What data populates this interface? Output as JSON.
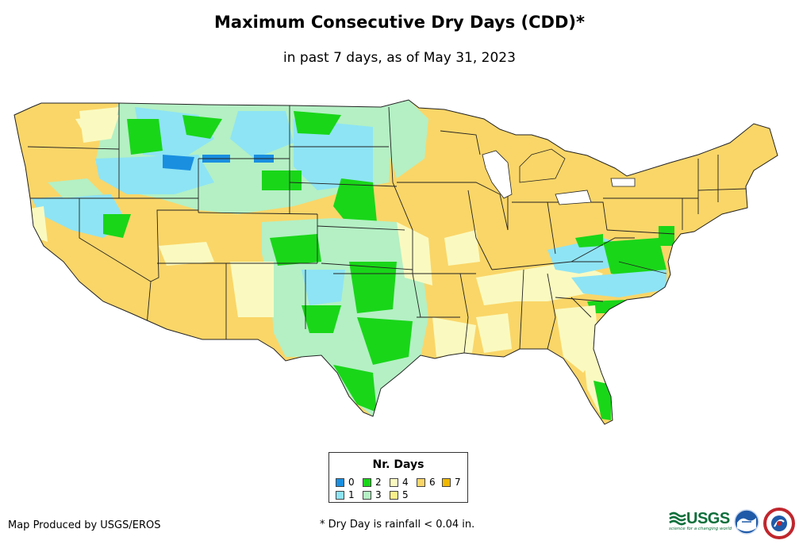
{
  "header": {
    "title": "Maximum Consecutive Dry Days (CDD)*",
    "subtitle": "in past 7 days, as of May 31, 2023"
  },
  "legend": {
    "title": "Nr. Days",
    "items": [
      {
        "label": "0",
        "color": "#1a8fe0"
      },
      {
        "label": "1",
        "color": "#8ee4f4"
      },
      {
        "label": "2",
        "color": "#19d619"
      },
      {
        "label": "3",
        "color": "#b4f0c4"
      },
      {
        "label": "4",
        "color": "#fafac0"
      },
      {
        "label": "5",
        "color": "#faf08a"
      },
      {
        "label": "6",
        "color": "#fad668"
      },
      {
        "label": "7",
        "color": "#f0b800"
      }
    ]
  },
  "footer": {
    "credit": "Map Produced by USGS/EROS",
    "footnote": "* Dry Day is rainfall < 0.04 in."
  },
  "logos": {
    "usgs": "USGS",
    "usgs_tagline": "science for a changing world",
    "noaa_icon": "noaa-seal-icon",
    "nws_icon": "nws-seal-icon"
  }
}
